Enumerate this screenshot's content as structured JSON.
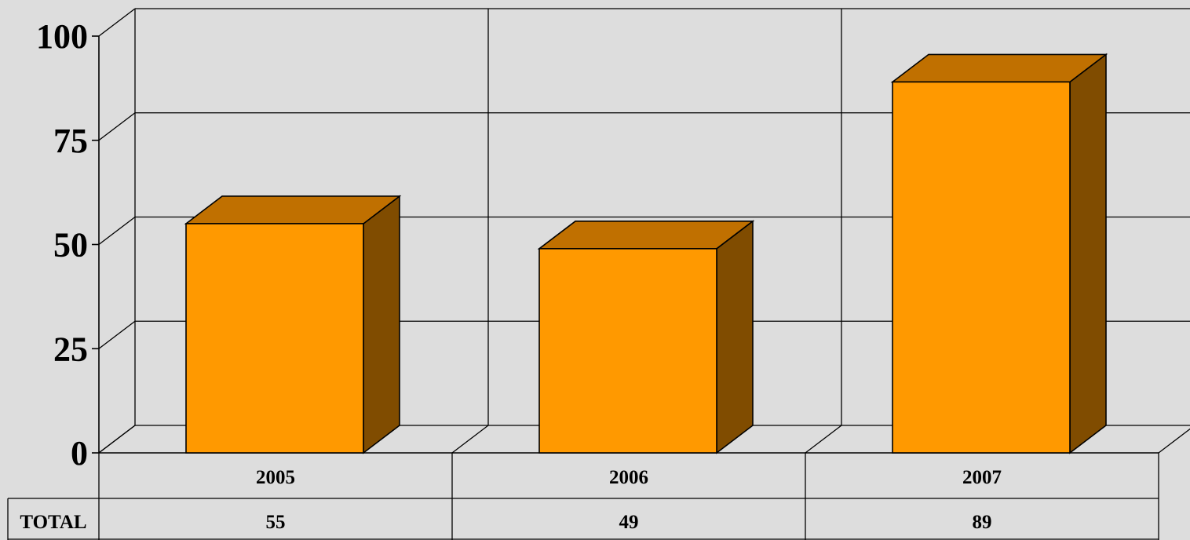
{
  "chart_data": {
    "type": "bar",
    "categories": [
      "2005",
      "2006",
      "2007"
    ],
    "series": [
      {
        "values": [
          55,
          49,
          89
        ]
      }
    ],
    "ylim": [
      0,
      100
    ],
    "yticks": [
      0,
      25,
      50,
      75,
      100
    ],
    "grid": true,
    "three_d": true,
    "data_table": {
      "row_label": "TOTAL",
      "values": [
        "55",
        "49",
        "89"
      ]
    },
    "colors": {
      "bar_front": "#ff9900",
      "bar_top": "#c07000",
      "bar_side": "#804c00",
      "background": "#dddddd"
    }
  }
}
